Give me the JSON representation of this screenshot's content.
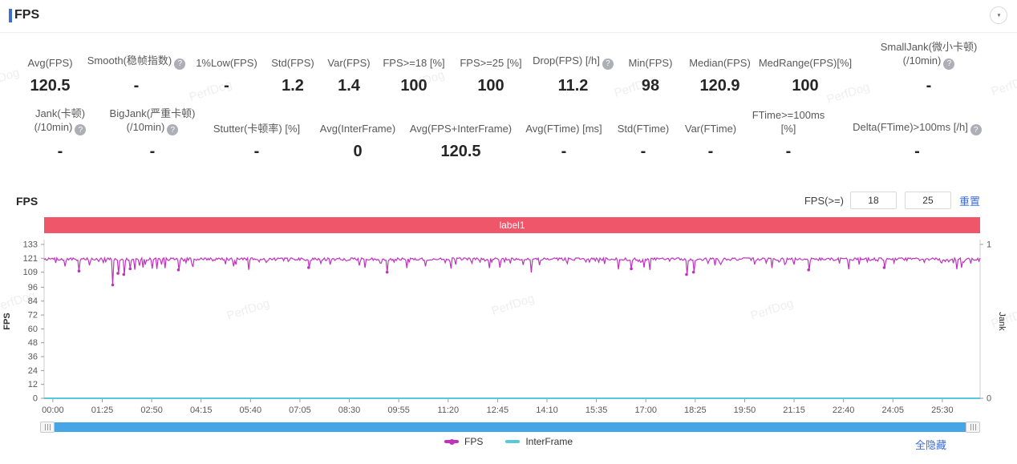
{
  "header": {
    "title": "FPS",
    "collapse_icon": "▼"
  },
  "stats": {
    "row1": [
      {
        "label": "Avg(FPS)",
        "value": "120.5"
      },
      {
        "label": "Smooth(稳帧指数)",
        "help": true,
        "value": "-"
      },
      {
        "label": "1%Low(FPS)",
        "value": "-"
      },
      {
        "label": "Std(FPS)",
        "value": "1.2"
      },
      {
        "label": "Var(FPS)",
        "value": "1.4"
      },
      {
        "label": "FPS>=18 [%]",
        "value": "100"
      },
      {
        "label": "FPS>=25 [%]",
        "value": "100"
      },
      {
        "label": "Drop(FPS) [/h]",
        "help": true,
        "value": "11.2"
      },
      {
        "label": "Min(FPS)",
        "value": "98"
      },
      {
        "label": "Median(FPS)",
        "value": "120.9"
      },
      {
        "label": "MedRange(FPS)[%]",
        "value": "100"
      },
      {
        "label": "SmallJank(微小卡顿)",
        "label2": "(/10min)",
        "help": true,
        "value": "-"
      }
    ],
    "row2": [
      {
        "label": "Jank(卡顿)",
        "label2": "(/10min)",
        "help": true,
        "value": "-"
      },
      {
        "label": "BigJank(严重卡顿)",
        "label2": "(/10min)",
        "help": true,
        "value": "-"
      },
      {
        "label": "Stutter(卡顿率) [%]",
        "value": "-"
      },
      {
        "label": "Avg(InterFrame)",
        "value": "0"
      },
      {
        "label": "Avg(FPS+InterFrame)",
        "value": "120.5"
      },
      {
        "label": "Avg(FTime) [ms]",
        "value": "-"
      },
      {
        "label": "Std(FTime)",
        "value": "-"
      },
      {
        "label": "Var(FTime)",
        "value": "-"
      },
      {
        "label": "FTime>=100ms [%]",
        "value": "-"
      },
      {
        "label": "Delta(FTime)>100ms [/h]",
        "help": true,
        "value": "-"
      }
    ]
  },
  "chart_section": {
    "title": "FPS",
    "threshold_label": "FPS(>=)",
    "threshold_values": [
      "18",
      "25"
    ],
    "reset_label": "重置",
    "label_bar_text": "label1",
    "label_bar_color": "#f0566a",
    "hide_all_label": "全隐藏",
    "watermark_text": "PerfDog"
  },
  "chart_data": {
    "type": "line",
    "title": "label1",
    "x_tick_labels": [
      "00:00",
      "01:25",
      "02:50",
      "04:15",
      "05:40",
      "07:05",
      "08:30",
      "09:55",
      "11:20",
      "12:45",
      "14:10",
      "15:35",
      "17:00",
      "18:25",
      "19:50",
      "21:15",
      "22:40",
      "24:05",
      "25:30"
    ],
    "x_tick_seconds": [
      0,
      85,
      170,
      255,
      340,
      425,
      510,
      595,
      680,
      765,
      850,
      935,
      1020,
      1105,
      1190,
      1275,
      1360,
      1445,
      1530
    ],
    "x_domain_seconds": [
      -15,
      1595
    ],
    "y_left": {
      "label": "FPS",
      "ticks": [
        0,
        12,
        24,
        36,
        48,
        60,
        72,
        84,
        96,
        109,
        121,
        133
      ],
      "range": [
        0,
        133
      ]
    },
    "y_right": {
      "label": "Jank",
      "ticks": [
        0,
        1
      ],
      "range": [
        0,
        1
      ]
    },
    "grid": false,
    "legend_position": "bottom-center",
    "series": [
      {
        "name": "FPS",
        "color": "#c032be",
        "style": "noisy-line",
        "baseline": 120.4,
        "noise_amplitude": 1.3,
        "minor_dip_rate": 0.16,
        "minor_dip_depth": 4.5,
        "dips": [
          {
            "t": 20,
            "v": 114
          },
          {
            "t": 45,
            "v": 110
          },
          {
            "t": 62,
            "v": 115
          },
          {
            "t": 103,
            "v": 98
          },
          {
            "t": 112,
            "v": 108
          },
          {
            "t": 122,
            "v": 107
          },
          {
            "t": 133,
            "v": 112
          },
          {
            "t": 216,
            "v": 111
          },
          {
            "t": 310,
            "v": 114
          },
          {
            "t": 440,
            "v": 113
          },
          {
            "t": 575,
            "v": 109
          },
          {
            "t": 640,
            "v": 114
          },
          {
            "t": 995,
            "v": 112
          },
          {
            "t": 1090,
            "v": 107
          },
          {
            "t": 1102,
            "v": 109
          },
          {
            "t": 1300,
            "v": 111
          },
          {
            "t": 1430,
            "v": 113
          }
        ]
      },
      {
        "name": "InterFrame",
        "color": "#56c9de",
        "style": "constant",
        "value": 0
      }
    ],
    "legend": [
      {
        "name": "FPS",
        "color": "#c032be",
        "has_dot": true
      },
      {
        "name": "InterFrame",
        "color": "#56c9de",
        "has_dot": false
      }
    ]
  },
  "layout_values": {
    "row1_widths": [
      85,
      130,
      95,
      70,
      70,
      92,
      100,
      105,
      88,
      85,
      128,
      180
    ],
    "row2_widths": [
      110,
      120,
      140,
      112,
      145,
      112,
      86,
      82,
      112,
      209
    ]
  }
}
